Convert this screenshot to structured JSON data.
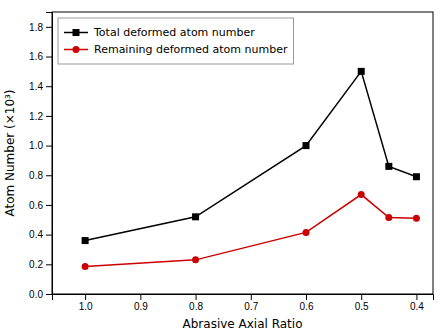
{
  "chart_data": {
    "type": "line",
    "x": [
      1.0,
      0.8,
      0.6,
      0.5,
      0.45,
      0.4
    ],
    "series": [
      {
        "name": "Total deformed atom number",
        "color": "#000000",
        "marker": "square",
        "values": [
          0.36,
          0.52,
          1.0,
          1.5,
          0.86,
          0.79
        ]
      },
      {
        "name": "Remaining deformed atom number",
        "color": "#cc0000",
        "marker": "circle",
        "values": [
          0.185,
          0.23,
          0.415,
          0.67,
          0.515,
          0.51
        ]
      }
    ],
    "xlabel": "Abrasive Axial Ratio",
    "ylabel": "Atom Number (×10³)",
    "xlim": [
      1.06,
      0.37
    ],
    "xticks": [
      {
        "value": 1.0,
        "label": "1.0"
      },
      0.9,
      0.8,
      0.7,
      0.6,
      0.5,
      0.4
    ],
    "ylim": [
      0.0,
      1.9
    ],
    "yticks": [
      {
        "value": 0.0,
        "label": "0.0"
      },
      0.2,
      0.4,
      0.6,
      0.8,
      {
        "value": 1.0,
        "label": "1.0"
      },
      1.2,
      1.4,
      1.6,
      1.8
    ],
    "legend": "upper left",
    "grid": false
  }
}
